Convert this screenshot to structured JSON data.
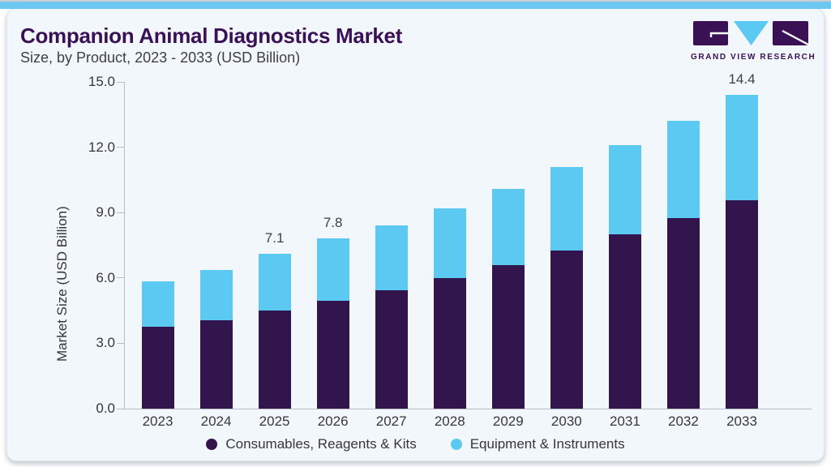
{
  "header": {
    "title": "Companion Animal Diagnostics Market",
    "subtitle": "Size, by Product, 2023 - 2033 (USD Billion)",
    "logo_text": "GRAND VIEW RESEARCH"
  },
  "colors": {
    "accent_strip": "#6cc8f1",
    "card_background": "#f1f7fb",
    "title_purple": "#3b1156",
    "consumables_purple": "#33154d",
    "equipment_cyan": "#5cc9f3",
    "axis_gray": "#b6bdc4",
    "label_gray": "#36363e"
  },
  "chart_data": {
    "type": "bar",
    "stacked": true,
    "title": "Companion Animal Diagnostics Market Size, by Product, 2023 - 2033 (USD Billion)",
    "categories": [
      "2023",
      "2024",
      "2025",
      "2026",
      "2027",
      "2028",
      "2029",
      "2030",
      "2031",
      "2032",
      "2033"
    ],
    "series": [
      {
        "name": "Consumables, Reagents & Kits",
        "color": "#33154d",
        "values": [
          3.75,
          4.05,
          4.5,
          4.95,
          5.45,
          6.0,
          6.6,
          7.25,
          8.0,
          8.75,
          9.55
        ]
      },
      {
        "name": "Equipment & Instruments",
        "color": "#5cc9f3",
        "values": [
          2.1,
          2.3,
          2.6,
          2.85,
          2.95,
          3.2,
          3.5,
          3.85,
          4.1,
          4.45,
          4.85
        ]
      }
    ],
    "totals": [
      5.85,
      6.35,
      7.1,
      7.8,
      8.4,
      9.2,
      10.1,
      11.1,
      12.1,
      13.2,
      14.4
    ],
    "bar_total_labels": [
      null,
      null,
      "7.1",
      "7.8",
      null,
      null,
      null,
      null,
      null,
      null,
      "14.4"
    ],
    "xlabel": "",
    "ylabel": "Market Size (USD Billion)",
    "ylim": [
      0,
      15
    ],
    "ytick_values": [
      0,
      3,
      6,
      9,
      12,
      15
    ],
    "yticks": [
      "0.0",
      "3.0",
      "6.0",
      "9.0",
      "12.0",
      "15.0"
    ],
    "grid": false,
    "legend_position": "bottom"
  }
}
